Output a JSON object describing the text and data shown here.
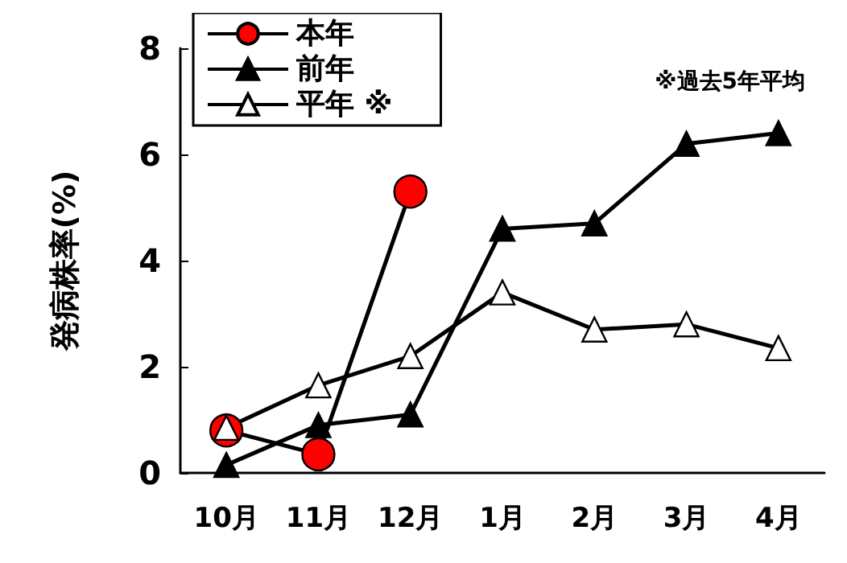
{
  "chart_data": {
    "type": "line",
    "ylabel": "発病株率(%)",
    "categories": [
      "10月",
      "11月",
      "12月",
      "1月",
      "2月",
      "3月",
      "4月"
    ],
    "series": [
      {
        "name": "本年",
        "color": "#ff0000",
        "marker": "circle",
        "values": [
          0.8,
          0.35,
          5.3,
          null,
          null,
          null,
          null
        ]
      },
      {
        "name": "前年",
        "color": "#000000",
        "marker": "triangle",
        "values": [
          0.15,
          0.9,
          1.1,
          4.6,
          4.7,
          6.2,
          6.4
        ]
      },
      {
        "name": "平年 ※",
        "color": "#ffffff",
        "marker": "triangle",
        "values": [
          0.85,
          1.65,
          2.2,
          3.4,
          2.7,
          2.8,
          2.35
        ]
      }
    ],
    "ylim": [
      0,
      8
    ],
    "yticks": [
      0,
      2,
      4,
      6,
      8
    ],
    "grid": false,
    "legend": "top left",
    "line_style": "solid",
    "annotations": [
      "※過去5年平均"
    ]
  }
}
